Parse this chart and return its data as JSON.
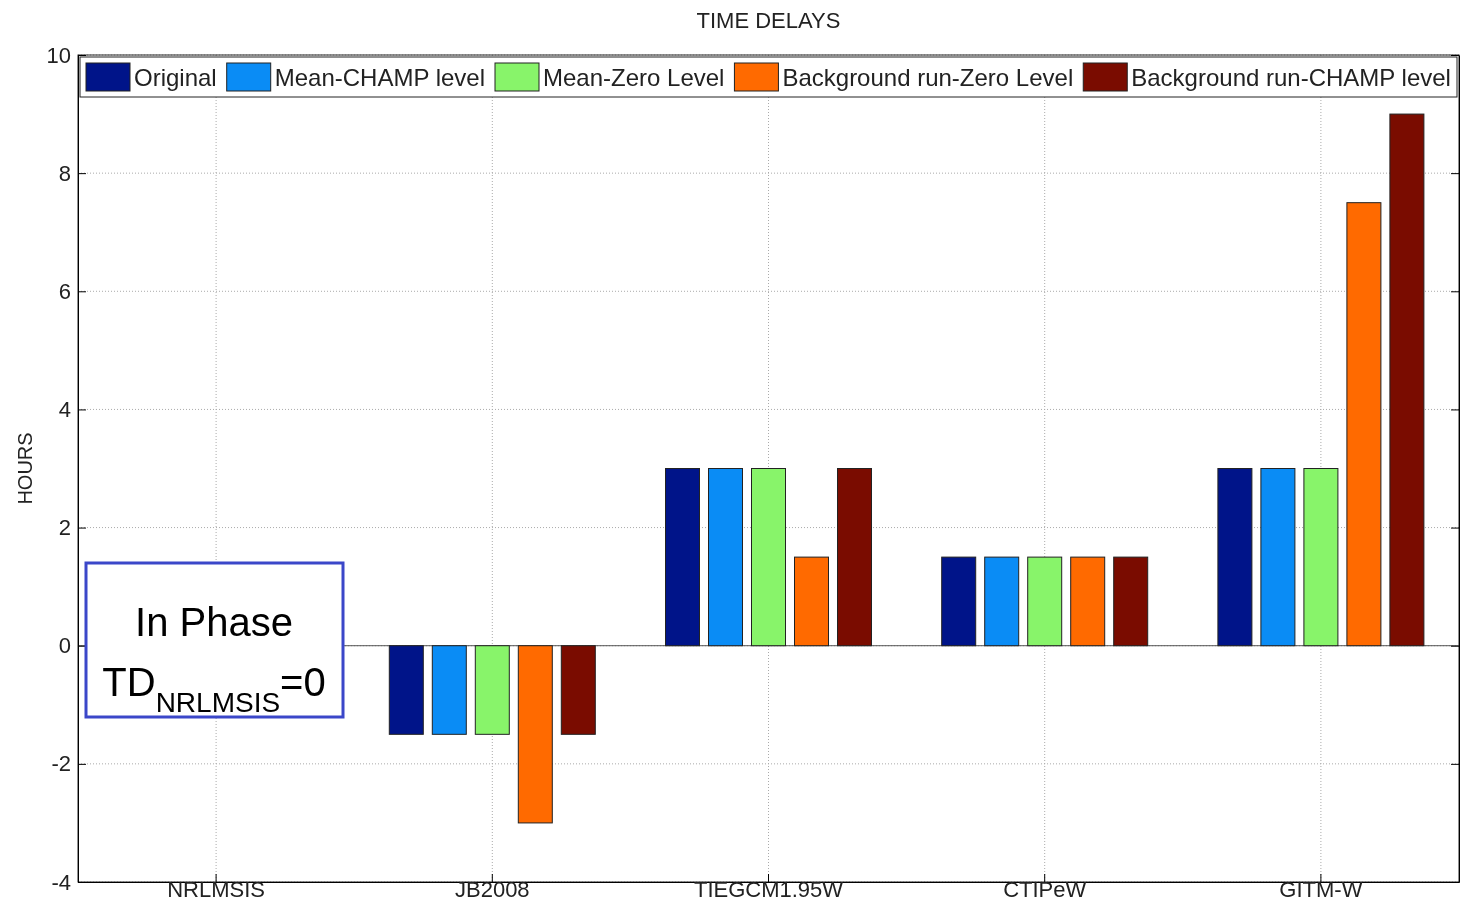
{
  "chart_data": {
    "type": "bar",
    "title": "TIME DELAYS",
    "ylabel": "HOURS",
    "categories": [
      "NRLMSIS",
      "JB2008",
      "TIEGCM1.95W",
      "CTIPeW",
      "GITM-W"
    ],
    "series": [
      {
        "name": "Original",
        "color": "#001489",
        "values": [
          0,
          -1.5,
          3,
          1.5,
          3
        ]
      },
      {
        "name": "Mean-CHAMP level",
        "color": "#0a8cf5",
        "values": [
          0,
          -1.5,
          3,
          1.5,
          3
        ]
      },
      {
        "name": "Mean-Zero Level",
        "color": "#88f46a",
        "values": [
          0,
          -1.5,
          3,
          1.5,
          3
        ]
      },
      {
        "name": "Background run-Zero Level",
        "color": "#ff6a00",
        "values": [
          0,
          -3,
          1.5,
          1.5,
          7.5
        ]
      },
      {
        "name": "Background run-CHAMP level",
        "color": "#7a0c00",
        "values": [
          0,
          -1.5,
          3,
          1.5,
          9
        ]
      }
    ],
    "ylim": [
      -4,
      10
    ],
    "yticks": [
      -4,
      -2,
      0,
      2,
      4,
      6,
      8,
      10
    ],
    "grid": true,
    "legend": "top",
    "annotations": [
      "In Phase",
      "TD$_{NRLMSIS}$=0"
    ]
  }
}
